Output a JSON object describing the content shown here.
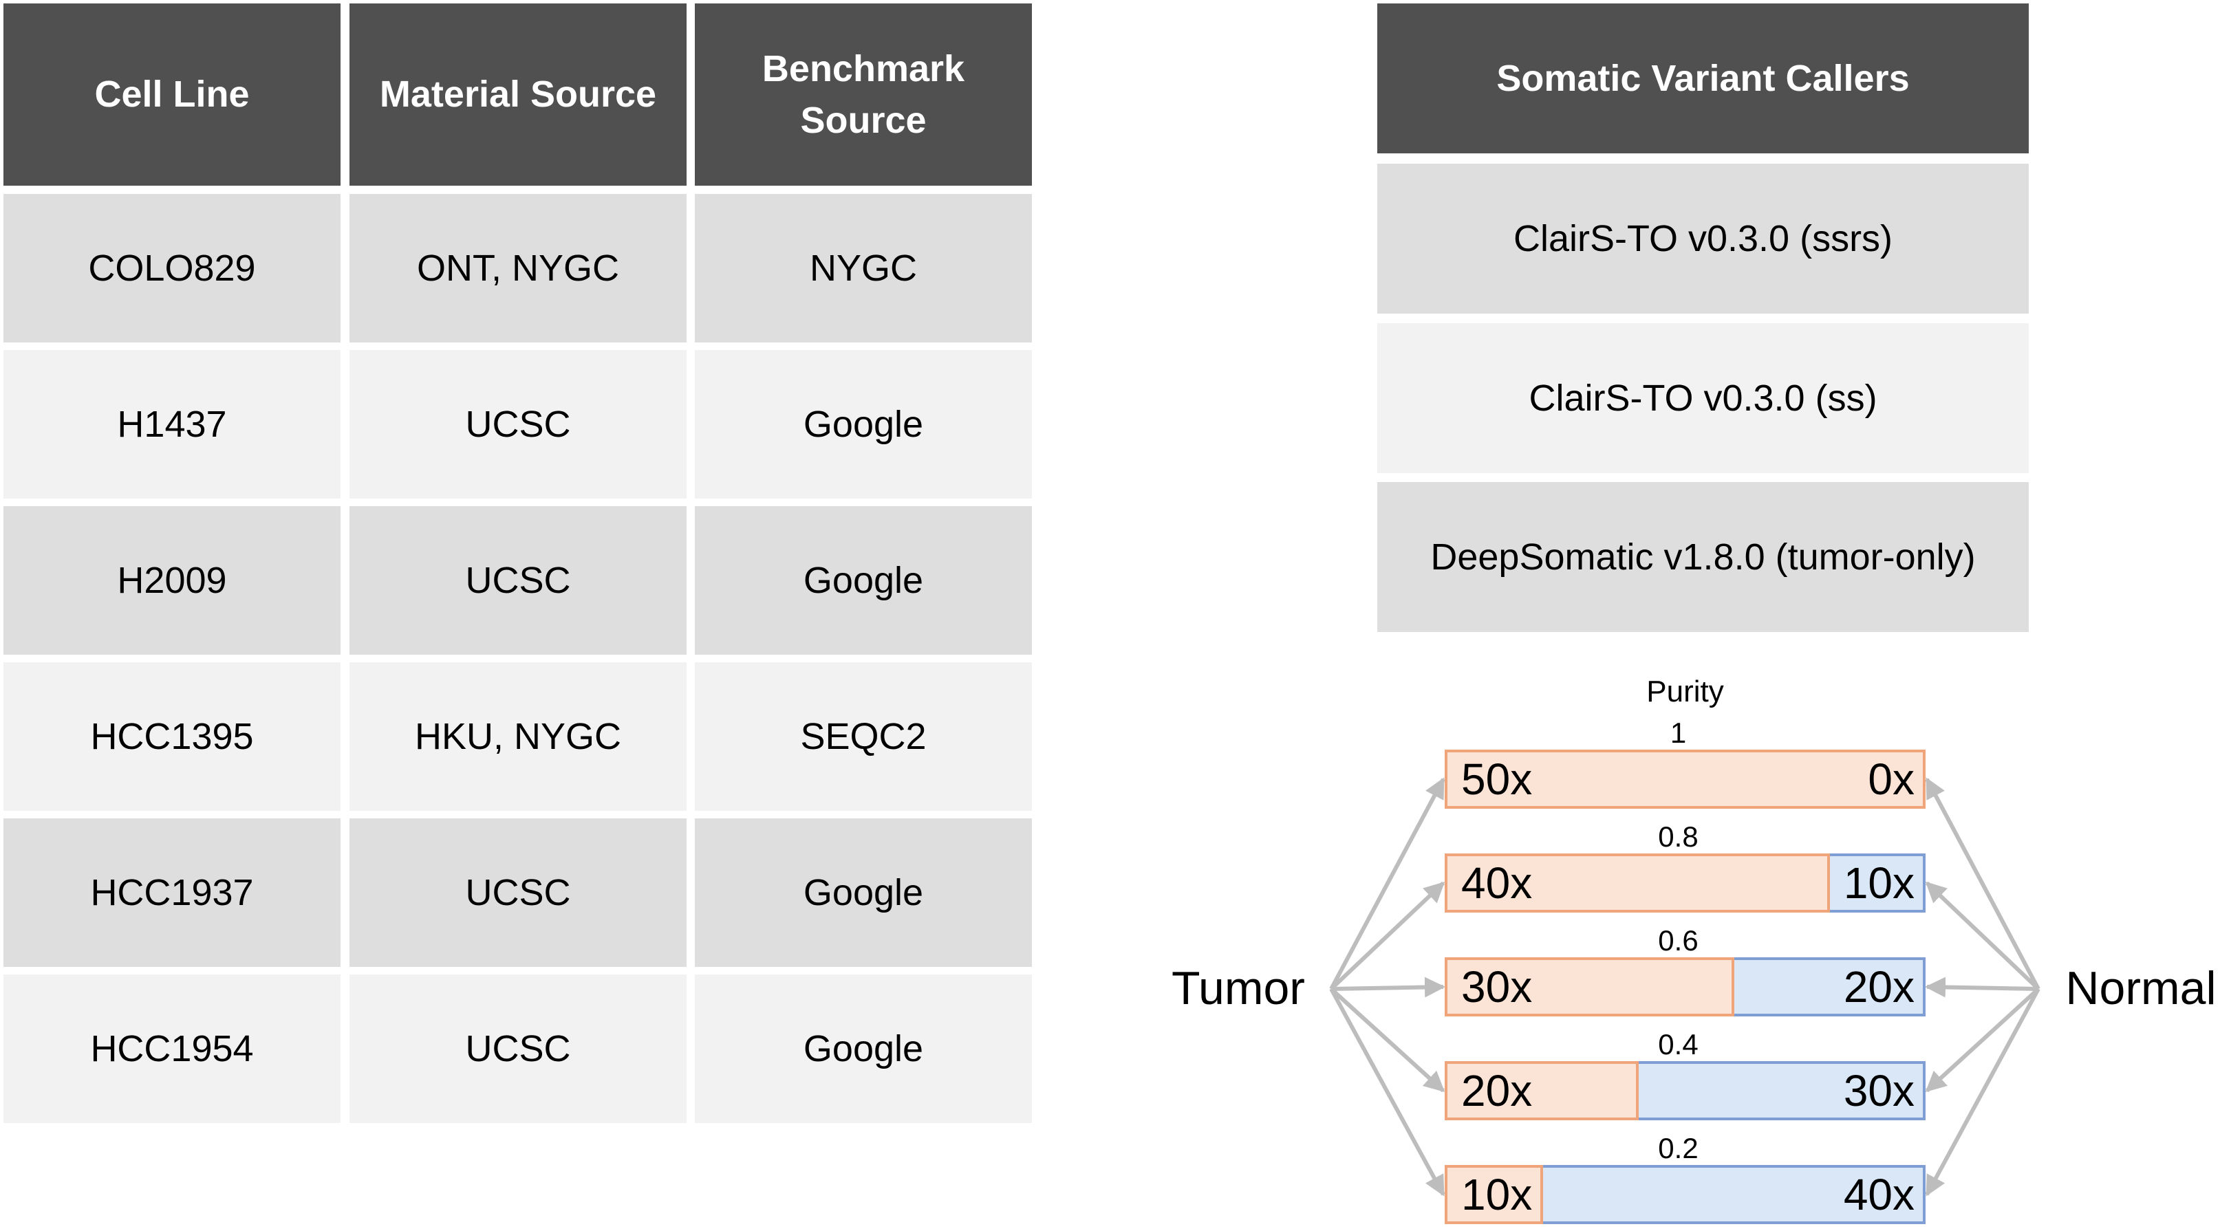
{
  "colors": {
    "header_bg": "#505050",
    "row_dark": "#dedede",
    "row_light": "#f2f2f2",
    "tumor_fill": "#fbe3d6",
    "tumor_stroke": "#f0a47a",
    "normal_fill": "#dae7f6",
    "normal_stroke": "#7f9ed3",
    "arrow": "#bdbdbd"
  },
  "cell_table": {
    "headers": [
      "Cell Line",
      "Material Source",
      "Benchmark Source"
    ],
    "rows": [
      [
        "COLO829",
        "ONT, NYGC",
        "NYGC"
      ],
      [
        "H1437",
        "UCSC",
        "Google"
      ],
      [
        "H2009",
        "UCSC",
        "Google"
      ],
      [
        "HCC1395",
        "HKU, NYGC",
        "SEQC2"
      ],
      [
        "HCC1937",
        "UCSC",
        "Google"
      ],
      [
        "HCC1954",
        "UCSC",
        "Google"
      ]
    ]
  },
  "caller_table": {
    "header": "Somatic Variant Callers",
    "rows": [
      "ClairS-TO v0.3.0 (ssrs)",
      "ClairS-TO v0.3.0 (ss)",
      "DeepSomatic v1.8.0 (tumor-only)"
    ]
  },
  "purity_diagram": {
    "title": "Purity",
    "left_label": "Tumor",
    "right_label": "Normal",
    "total_coverage": 50,
    "bars": [
      {
        "purity": "1",
        "purity_value": 1.0,
        "tumor": "50x",
        "normal": "0x"
      },
      {
        "purity": "0.8",
        "purity_value": 0.8,
        "tumor": "40x",
        "normal": "10x"
      },
      {
        "purity": "0.6",
        "purity_value": 0.6,
        "tumor": "30x",
        "normal": "20x"
      },
      {
        "purity": "0.4",
        "purity_value": 0.4,
        "tumor": "20x",
        "normal": "30x"
      },
      {
        "purity": "0.2",
        "purity_value": 0.2,
        "tumor": "10x",
        "normal": "40x"
      }
    ]
  }
}
